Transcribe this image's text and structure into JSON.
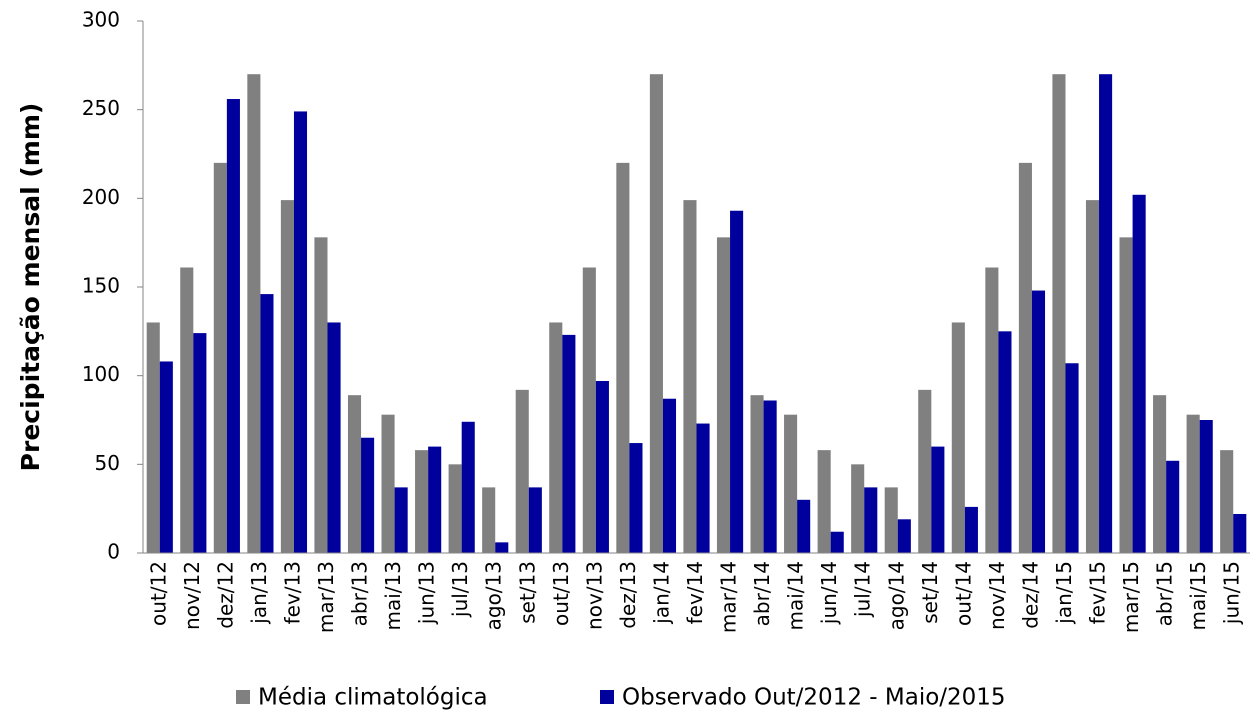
{
  "chart_data": {
    "type": "bar",
    "y_label": "Precipitação mensal (mm)",
    "categories": [
      "out/12",
      "nov/12",
      "dez/12",
      "jan/13",
      "fev/13",
      "mar/13",
      "abr/13",
      "mai/13",
      "jun/13",
      "jul/13",
      "ago/13",
      "set/13",
      "out/13",
      "nov/13",
      "dez/13",
      "jan/14",
      "fev/14",
      "mar/14",
      "abr/14",
      "mai/14",
      "jun/14",
      "jul/14",
      "ago/14",
      "set/14",
      "out/14",
      "nov/14",
      "dez/14",
      "jan/15",
      "fev/15",
      "mar/15",
      "abr/15",
      "mai/15",
      "jun/15"
    ],
    "series": [
      {
        "name": "Média climatológica",
        "color": "#808080",
        "values": [
          130,
          161,
          220,
          270,
          199,
          178,
          89,
          78,
          58,
          50,
          37,
          92,
          130,
          161,
          220,
          270,
          199,
          178,
          89,
          78,
          58,
          50,
          37,
          92,
          130,
          161,
          220,
          270,
          199,
          178,
          89,
          78,
          58
        ]
      },
      {
        "name": "Observado Out/2012 - Maio/2015",
        "color": "#00009c",
        "values": [
          108,
          124,
          256,
          146,
          249,
          130,
          65,
          37,
          60,
          74,
          6,
          37,
          123,
          97,
          62,
          87,
          73,
          193,
          86,
          30,
          12,
          37,
          19,
          60,
          26,
          125,
          148,
          107,
          270,
          202,
          52,
          75,
          22
        ]
      }
    ],
    "ylim": [
      0,
      300
    ],
    "yticks": [
      0,
      50,
      100,
      150,
      200,
      250,
      300
    ],
    "grid": false
  }
}
